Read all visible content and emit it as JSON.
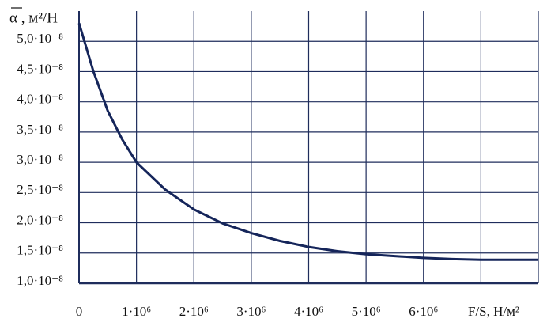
{
  "chart_data": {
    "type": "line",
    "y_label": "α , м²/Н",
    "x_label": "F/S, Н/м²",
    "xlim": [
      0,
      8000000
    ],
    "ylim": [
      1e-08,
      5.5e-08
    ],
    "xticks": [
      0,
      {
        "value": 1000000,
        "label": "1·10⁶"
      },
      {
        "value": 2000000,
        "label": "2·10⁶"
      },
      {
        "value": 3000000,
        "label": "3·10⁶"
      },
      {
        "value": 4000000,
        "label": "4·10⁶"
      },
      {
        "value": 5000000,
        "label": "5·10⁶"
      },
      {
        "value": 6000000,
        "label": "6·10⁶"
      },
      {
        "value": 7000000,
        "label": null
      }
    ],
    "yticks": [
      {
        "value": 1e-08,
        "label": "1,0·10⁻⁸"
      },
      {
        "value": 1.5e-08,
        "label": "1,5·10⁻⁸"
      },
      {
        "value": 2e-08,
        "label": "2,0·10⁻⁸"
      },
      {
        "value": 2.5e-08,
        "label": "2,5·10⁻⁸"
      },
      {
        "value": 3e-08,
        "label": "3,0·10⁻⁸"
      },
      {
        "value": 3.5e-08,
        "label": "3,5·10⁻⁸"
      },
      {
        "value": 4e-08,
        "label": "4,0·10⁻⁸"
      },
      {
        "value": 4.5e-08,
        "label": "4,5·10⁻⁸"
      },
      {
        "value": 5e-08,
        "label": "5,0·10⁻⁸"
      }
    ],
    "grid": true,
    "series": [
      {
        "color": "#15255a",
        "x": [
          0,
          250000,
          500000,
          750000,
          1000000,
          1500000,
          2000000,
          2500000,
          3000000,
          3500000,
          4000000,
          4500000,
          5000000,
          5500000,
          6000000,
          6500000,
          7000000,
          7500000,
          8000000
        ],
        "values": [
          5.3e-08,
          4.5e-08,
          3.85e-08,
          3.38e-08,
          3e-08,
          2.55e-08,
          2.22e-08,
          1.99e-08,
          1.83e-08,
          1.7e-08,
          1.6e-08,
          1.53e-08,
          1.48e-08,
          1.45e-08,
          1.42e-08,
          1.4e-08,
          1.39e-08,
          1.39e-08,
          1.39e-08
        ]
      }
    ]
  }
}
